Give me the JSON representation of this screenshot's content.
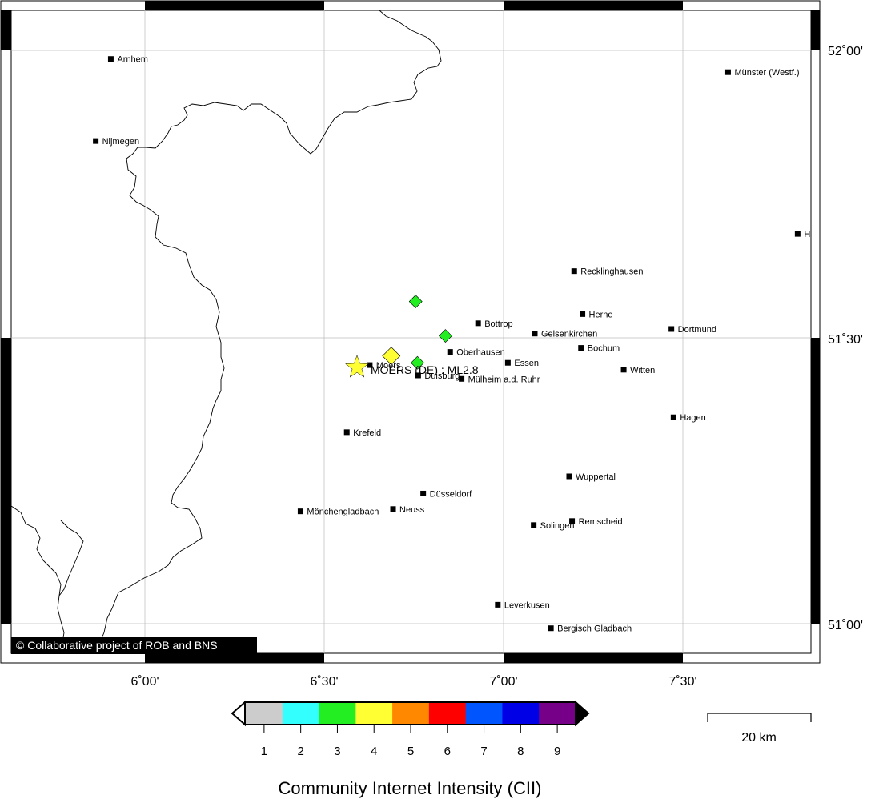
{
  "map": {
    "event": {
      "label": "MOERS (DE) : ML2.8",
      "lon": 6.625,
      "lat": 51.455
    },
    "credit": "© Collaborative project of ROB and BNS",
    "longitude_ticks": [
      "6˚00'",
      "6˚30'",
      "7˚00'",
      "7˚30'"
    ],
    "latitude_ticks": [
      "52˚00'",
      "51˚30'",
      "51˚00'"
    ],
    "cities": [
      {
        "name": "Arnhem",
        "lon": 5.905,
        "lat": 51.985
      },
      {
        "name": "Nijmegen",
        "lon": 5.863,
        "lat": 51.842
      },
      {
        "name": "Münster (Westf.)",
        "lon": 7.626,
        "lat": 51.962
      },
      {
        "name": "H",
        "lon": 7.82,
        "lat": 51.68
      },
      {
        "name": "Recklinghausen",
        "lon": 7.197,
        "lat": 51.615
      },
      {
        "name": "Herne",
        "lon": 7.22,
        "lat": 51.54
      },
      {
        "name": "Dortmund",
        "lon": 7.468,
        "lat": 51.514
      },
      {
        "name": "Bottrop",
        "lon": 6.929,
        "lat": 51.524
      },
      {
        "name": "Gelsenkirchen",
        "lon": 7.087,
        "lat": 51.506
      },
      {
        "name": "Oberhausen",
        "lon": 6.851,
        "lat": 51.474
      },
      {
        "name": "Essen",
        "lon": 7.012,
        "lat": 51.455
      },
      {
        "name": "Bochum",
        "lon": 7.216,
        "lat": 51.481
      },
      {
        "name": "Moers",
        "lon": 6.627,
        "lat": 51.451
      },
      {
        "name": "Duisburg",
        "lon": 6.762,
        "lat": 51.433
      },
      {
        "name": "Mülheim a.d. Ruhr",
        "lon": 6.883,
        "lat": 51.427
      },
      {
        "name": "Witten",
        "lon": 7.335,
        "lat": 51.443
      },
      {
        "name": "Hagen",
        "lon": 7.474,
        "lat": 51.36
      },
      {
        "name": "Krefeld",
        "lon": 6.563,
        "lat": 51.334
      },
      {
        "name": "Wuppertal",
        "lon": 7.183,
        "lat": 51.257
      },
      {
        "name": "Düsseldorf",
        "lon": 6.776,
        "lat": 51.227
      },
      {
        "name": "Neuss",
        "lon": 6.692,
        "lat": 51.2
      },
      {
        "name": "Mönchengladbach",
        "lon": 6.434,
        "lat": 51.196
      },
      {
        "name": "Solingen",
        "lon": 7.084,
        "lat": 51.172
      },
      {
        "name": "Remscheid",
        "lon": 7.191,
        "lat": 51.179
      },
      {
        "name": "Leverkusen",
        "lon": 6.984,
        "lat": 51.033
      },
      {
        "name": "Bergisch Gladbach",
        "lon": 7.132,
        "lat": 50.992
      }
    ],
    "intensity_reports": [
      {
        "lon": 6.687,
        "lat": 51.467,
        "cii": 4
      },
      {
        "lon": 6.76,
        "lat": 51.455,
        "cii": 3
      },
      {
        "lon": 6.755,
        "lat": 51.562,
        "cii": 3
      },
      {
        "lon": 6.838,
        "lat": 51.502,
        "cii": 3
      }
    ]
  },
  "legend": {
    "title": "Community Internet Intensity (CII)",
    "levels": [
      "1",
      "2",
      "3",
      "4",
      "5",
      "6",
      "7",
      "8",
      "9"
    ],
    "colors": [
      "#cccccc",
      "#33ffff",
      "#22ee22",
      "#ffff33",
      "#ff8800",
      "#ff0000",
      "#0055ff",
      "#0000e6",
      "#770088"
    ]
  },
  "scale_bar": {
    "label": "20 km"
  },
  "colors": {
    "star": "#ffff33",
    "cii3": "#22ee22",
    "cii4": "#ffff33"
  }
}
